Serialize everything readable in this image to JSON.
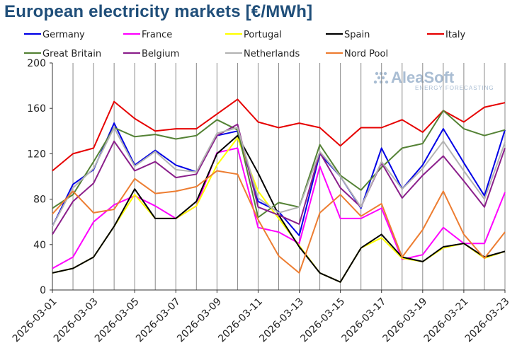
{
  "chart_data": {
    "type": "line",
    "title": "European electricity markets [€/MWh]",
    "xlabel": "",
    "ylabel": "",
    "ylim": [
      0,
      200
    ],
    "yticks": [
      0,
      40,
      80,
      120,
      160,
      200
    ],
    "grid": {
      "vertical": true,
      "horizontal": false
    },
    "legend_placement": "top",
    "x": [
      "2026-03-01",
      "2026-03-02",
      "2026-03-03",
      "2026-03-04",
      "2026-03-05",
      "2026-03-06",
      "2026-03-07",
      "2026-03-08",
      "2026-03-09",
      "2026-03-10",
      "2026-03-11",
      "2026-03-12",
      "2026-03-13",
      "2026-03-14",
      "2026-03-15",
      "2026-03-16",
      "2026-03-17",
      "2026-03-18",
      "2026-03-19",
      "2026-03-20",
      "2026-03-21",
      "2026-03-22",
      "2026-03-23"
    ],
    "xtick_labels": [
      "2026-03-01",
      "2026-03-03",
      "2026-03-05",
      "2026-03-07",
      "2026-03-09",
      "2026-03-11",
      "2026-03-13",
      "2026-03-15",
      "2026-03-17",
      "2026-03-19",
      "2026-03-21",
      "2026-03-23"
    ],
    "series": [
      {
        "name": "Germany",
        "color": "#0000e6",
        "values": [
          56,
          93,
          106,
          147,
          110,
          123,
          110,
          104,
          136,
          140,
          78,
          69,
          48,
          120,
          100,
          72,
          125,
          89,
          110,
          142,
          112,
          83,
          141
        ]
      },
      {
        "name": "France",
        "color": "#ff00ff",
        "values": [
          19,
          29,
          60,
          75,
          83,
          74,
          63,
          74,
          121,
          125,
          55,
          51,
          41,
          109,
          63,
          63,
          72,
          27,
          31,
          55,
          41,
          41,
          86
        ]
      },
      {
        "name": "Portugal",
        "color": "#ffff00",
        "values": [
          15,
          19,
          29,
          56,
          84,
          63,
          63,
          74,
          110,
          134,
          87,
          63,
          39,
          15,
          7,
          37,
          46,
          28,
          25,
          37,
          41,
          28,
          34
        ]
      },
      {
        "name": "Spain",
        "color": "#000000",
        "values": [
          15,
          19,
          29,
          56,
          89,
          63,
          63,
          78,
          120,
          136,
          103,
          66,
          38,
          15,
          7,
          37,
          49,
          29,
          25,
          38,
          41,
          29,
          34
        ]
      },
      {
        "name": "Italy",
        "color": "#e60000",
        "values": [
          105,
          120,
          125,
          166,
          151,
          140,
          142,
          142,
          155,
          168,
          148,
          143,
          147,
          143,
          127,
          143,
          143,
          150,
          139,
          158,
          148,
          161,
          165
        ]
      },
      {
        "name": "Great Britain",
        "color": "#548235",
        "values": [
          72,
          84,
          113,
          143,
          135,
          137,
          133,
          136,
          150,
          141,
          64,
          77,
          73,
          128,
          101,
          88,
          108,
          125,
          129,
          158,
          142,
          136,
          141
        ]
      },
      {
        "name": "Belgium",
        "color": "#8b1f8b",
        "values": [
          49,
          78,
          94,
          131,
          105,
          113,
          99,
          102,
          136,
          146,
          73,
          66,
          58,
          121,
          90,
          73,
          112,
          81,
          101,
          118,
          96,
          73,
          125
        ]
      },
      {
        "name": "Netherlands",
        "color": "#b3b3b3",
        "values": [
          56,
          90,
          107,
          143,
          109,
          122,
          106,
          104,
          138,
          143,
          81,
          68,
          73,
          122,
          100,
          73,
          113,
          89,
          107,
          131,
          105,
          80,
          130
        ]
      },
      {
        "name": "Nord Pool",
        "color": "#ed7d31",
        "values": [
          67,
          87,
          68,
          71,
          98,
          85,
          87,
          91,
          105,
          102,
          62,
          30,
          15,
          68,
          84,
          65,
          76,
          29,
          53,
          87,
          49,
          28,
          51
        ]
      }
    ]
  }
}
